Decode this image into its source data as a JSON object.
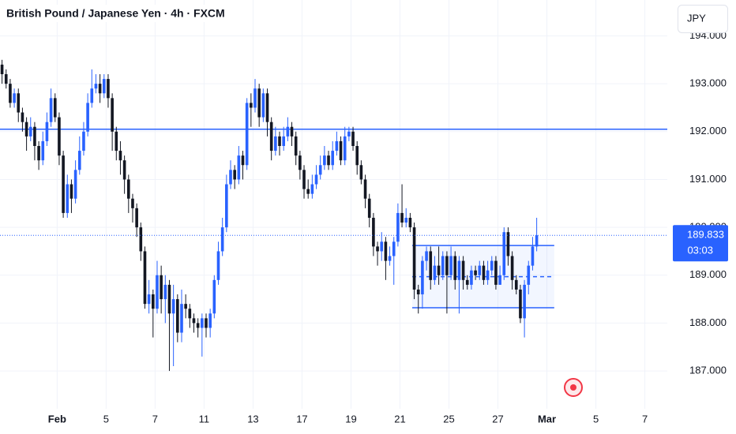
{
  "chart_data": {
    "type": "candlestick",
    "title": "British Pound / Japanese Yen · 4h · FXCM",
    "open": [
      193.4,
      193.2,
      193.0,
      192.6,
      192.8,
      192.4,
      192.2,
      191.9,
      192.1,
      191.7,
      191.4,
      191.8,
      192.2,
      192.7,
      192.3,
      191.5,
      190.3,
      190.9,
      190.6,
      191.2,
      191.6,
      192.0,
      192.6,
      192.9,
      193.0,
      192.8,
      193.1,
      192.7,
      192.0,
      191.6,
      191.4,
      191.0,
      190.6,
      190.4,
      190.0,
      189.5,
      188.4,
      188.6,
      188.3,
      189.0,
      188.5,
      188.8,
      188.2,
      188.5,
      187.8,
      188.4,
      188.3,
      188.1,
      188.0,
      187.9,
      188.1,
      187.9,
      188.2,
      188.9,
      189.5,
      190.0,
      190.9,
      191.2,
      191.0,
      191.5,
      191.3,
      192.6,
      192.5,
      192.9,
      192.3,
      192.8,
      192.2,
      191.6,
      191.9,
      191.7,
      191.9,
      192.1,
      191.9,
      191.5,
      191.2,
      190.8,
      190.7,
      190.9,
      191.1,
      191.3,
      191.5,
      191.3,
      191.6,
      191.8,
      191.4,
      191.9,
      192.0,
      191.7,
      191.3,
      191.0,
      190.6,
      190.2,
      189.6,
      189.5,
      189.7,
      189.3,
      189.4,
      189.7,
      190.3,
      190.1,
      190.2,
      190.0,
      188.7,
      188.6,
      189.3,
      189.5,
      188.9,
      189.2,
      189.0,
      189.4,
      189.0,
      189.4,
      188.9,
      189.3,
      188.9,
      188.8,
      189.1,
      189.0,
      189.2,
      188.9,
      189.1,
      189.3,
      188.8,
      189.0,
      189.9,
      189.4,
      188.9,
      188.7,
      188.1,
      188.8,
      189.2,
      189.6
    ],
    "high": [
      193.5,
      193.3,
      193.1,
      192.9,
      192.9,
      192.5,
      192.3,
      192.3,
      192.2,
      191.8,
      192.0,
      192.4,
      192.9,
      192.8,
      192.4,
      191.6,
      191.1,
      191.0,
      191.4,
      191.9,
      192.2,
      192.8,
      193.3,
      193.2,
      193.2,
      193.2,
      193.2,
      192.8,
      192.1,
      191.8,
      191.5,
      191.1,
      190.7,
      190.5,
      190.1,
      189.6,
      188.9,
      188.7,
      189.3,
      189.2,
      189.0,
      188.9,
      188.8,
      188.6,
      188.7,
      188.6,
      188.4,
      188.2,
      188.1,
      188.2,
      188.2,
      188.3,
      189.0,
      189.7,
      190.2,
      191.1,
      191.4,
      191.3,
      191.7,
      191.6,
      192.7,
      192.8,
      193.1,
      193.0,
      192.9,
      192.9,
      192.3,
      192.1,
      192.0,
      192.1,
      192.3,
      192.2,
      192.0,
      191.6,
      191.3,
      191.0,
      191.1,
      191.3,
      191.5,
      191.7,
      191.6,
      191.8,
      192.0,
      191.9,
      192.1,
      192.1,
      192.1,
      191.8,
      191.4,
      191.1,
      190.7,
      190.3,
      189.7,
      189.9,
      189.8,
      189.6,
      189.8,
      190.5,
      190.9,
      190.4,
      190.3,
      190.1,
      188.8,
      189.4,
      189.6,
      189.6,
      189.4,
      189.6,
      189.5,
      189.5,
      189.6,
      189.5,
      189.4,
      189.4,
      189.0,
      189.2,
      189.2,
      189.3,
      189.3,
      189.3,
      189.4,
      189.4,
      189.2,
      190.0,
      190.0,
      189.5,
      189.0,
      188.8,
      188.9,
      189.3,
      189.8,
      190.2
    ],
    "low": [
      193.0,
      192.9,
      192.5,
      192.5,
      192.2,
      192.0,
      191.6,
      191.8,
      191.4,
      191.2,
      191.3,
      191.7,
      192.1,
      192.2,
      191.3,
      190.2,
      190.2,
      190.3,
      190.5,
      191.1,
      191.5,
      191.9,
      192.5,
      192.8,
      192.6,
      192.7,
      192.5,
      191.6,
      191.4,
      191.1,
      190.7,
      190.3,
      190.1,
      189.8,
      189.3,
      188.3,
      188.2,
      187.7,
      188.2,
      188.2,
      188.0,
      187.0,
      187.1,
      187.6,
      187.6,
      188.1,
      187.9,
      187.8,
      187.7,
      187.3,
      187.7,
      187.7,
      188.1,
      188.8,
      189.4,
      189.9,
      190.8,
      190.8,
      190.9,
      191.0,
      191.2,
      192.1,
      192.4,
      192.1,
      192.2,
      191.9,
      191.4,
      191.5,
      191.5,
      191.6,
      191.8,
      191.7,
      191.3,
      191.0,
      190.6,
      190.6,
      190.6,
      190.8,
      191.0,
      191.2,
      191.2,
      191.2,
      191.5,
      191.3,
      191.3,
      191.8,
      191.6,
      191.1,
      190.9,
      190.4,
      190.0,
      189.4,
      189.2,
      189.3,
      188.9,
      189.2,
      188.8,
      189.6,
      190.0,
      190.0,
      189.9,
      188.5,
      188.2,
      188.3,
      189.1,
      188.7,
      188.8,
      188.8,
      188.9,
      188.2,
      188.9,
      188.7,
      188.2,
      188.7,
      188.7,
      188.7,
      188.9,
      188.9,
      188.8,
      188.8,
      189.0,
      188.7,
      188.8,
      188.9,
      189.2,
      188.7,
      188.6,
      188.0,
      187.7,
      188.6,
      189.1,
      189.5
    ],
    "close": [
      193.2,
      193.0,
      192.6,
      192.8,
      192.4,
      192.2,
      191.9,
      192.1,
      191.7,
      191.4,
      191.8,
      192.2,
      192.7,
      192.3,
      191.5,
      190.3,
      190.9,
      190.6,
      191.2,
      191.6,
      192.0,
      192.6,
      192.9,
      193.0,
      192.8,
      193.1,
      192.7,
      192.0,
      191.6,
      191.4,
      191.0,
      190.6,
      190.4,
      190.0,
      189.5,
      188.4,
      188.6,
      188.3,
      189.0,
      188.5,
      188.8,
      188.2,
      188.5,
      187.8,
      188.4,
      188.3,
      188.1,
      188.0,
      187.9,
      188.1,
      187.9,
      188.2,
      188.9,
      189.5,
      190.0,
      190.9,
      191.2,
      191.0,
      191.5,
      191.3,
      192.6,
      192.5,
      192.9,
      192.3,
      192.8,
      192.2,
      191.6,
      191.9,
      191.7,
      191.9,
      192.1,
      191.9,
      191.5,
      191.2,
      190.8,
      190.7,
      190.9,
      191.1,
      191.3,
      191.5,
      191.3,
      191.6,
      191.8,
      191.4,
      191.9,
      192.0,
      191.7,
      191.3,
      191.0,
      190.6,
      190.2,
      189.6,
      189.5,
      189.7,
      189.3,
      189.4,
      189.7,
      190.3,
      190.1,
      190.2,
      190.0,
      188.7,
      188.6,
      189.3,
      189.5,
      188.9,
      189.2,
      189.0,
      189.4,
      189.0,
      189.4,
      188.9,
      189.3,
      188.9,
      188.8,
      189.1,
      189.0,
      189.2,
      188.9,
      189.1,
      189.3,
      188.8,
      189.0,
      189.9,
      189.4,
      188.9,
      188.7,
      188.1,
      188.8,
      189.2,
      189.6,
      189.833
    ],
    "up_color": "#2962ff",
    "down_color": "#131722",
    "xlim": [
      0,
      163.5
    ],
    "xticks": [
      {
        "value": 14,
        "label": "Feb"
      },
      {
        "value": 26,
        "label": "5"
      },
      {
        "value": 38,
        "label": "7"
      },
      {
        "value": 50,
        "label": "11"
      },
      {
        "value": 62,
        "label": "13"
      },
      {
        "value": 74,
        "label": "17"
      },
      {
        "value": 86,
        "label": "19"
      },
      {
        "value": 98,
        "label": "21"
      },
      {
        "value": 110,
        "label": "25"
      },
      {
        "value": 122,
        "label": "27"
      },
      {
        "value": 134,
        "label": "Mar"
      },
      {
        "value": 146,
        "label": "5"
      },
      {
        "value": 158,
        "label": "7"
      }
    ],
    "ylim": [
      186.21,
      194.75
    ],
    "yticks": [
      {
        "value": 187,
        "label": "187.000"
      },
      {
        "value": 188,
        "label": "188.000"
      },
      {
        "value": 189,
        "label": "189.000"
      },
      {
        "value": 190,
        "label": "190.000"
      },
      {
        "value": 191,
        "label": "191.000"
      },
      {
        "value": 192,
        "label": "192.000"
      },
      {
        "value": 193,
        "label": "193.000"
      },
      {
        "value": 194,
        "label": "194.000"
      }
    ],
    "grid": true,
    "hlines": [
      192.05
    ],
    "range_box": {
      "x_start": 101,
      "x_end": 135.8,
      "top": 189.62,
      "mid": 188.97,
      "bottom": 188.32
    },
    "last_price": {
      "value": 189.833,
      "label": "189.833"
    },
    "countdown": "03:03"
  },
  "currency_button": "JPY"
}
